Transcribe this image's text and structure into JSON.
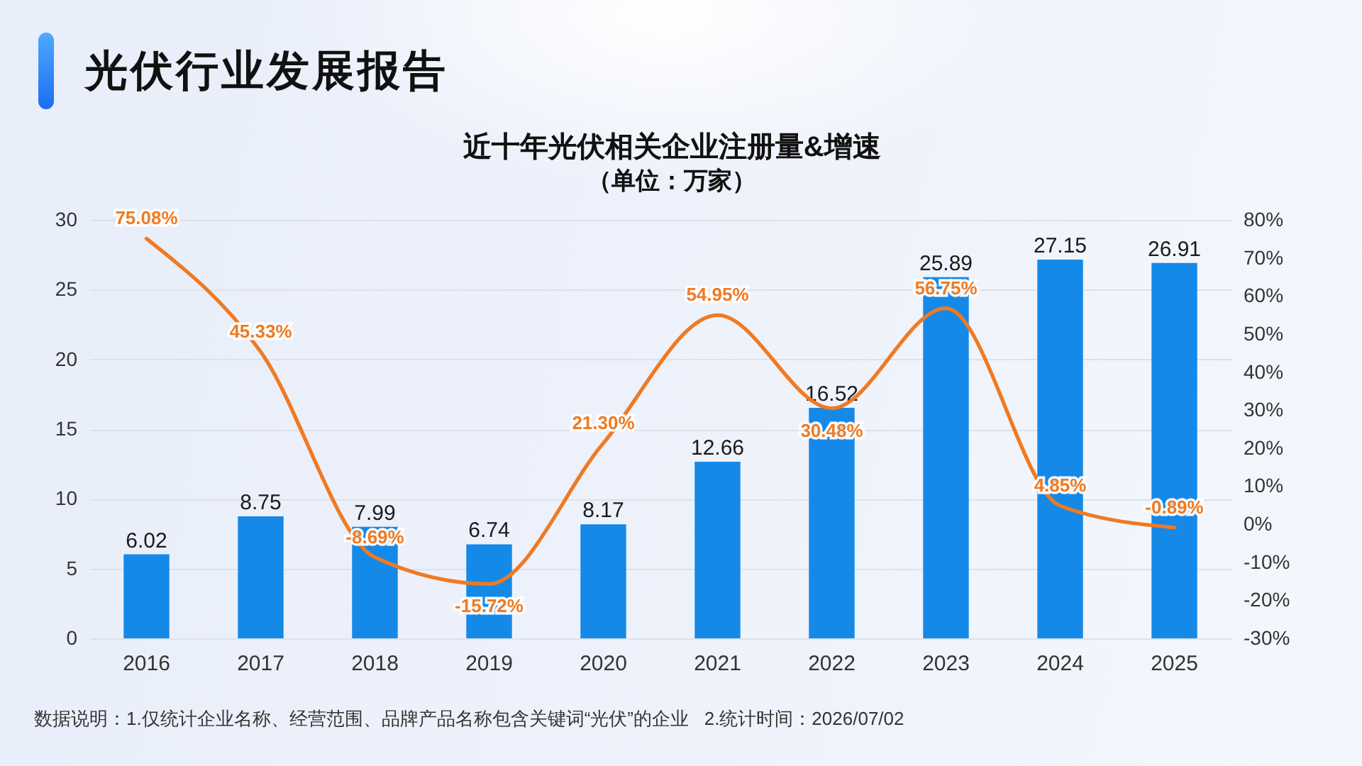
{
  "chart_data": {
    "type": "bar",
    "title": "近十年光伏相关企业注册量&增速",
    "subtitle": "（单位：万家）",
    "annotations": [
      "光伏行业发展报告",
      "数据说明：1.仅统计企业名称、经营范围、品牌产品名称包含关键词“光伏”的企业   2.统计时间：2026/07/02"
    ],
    "categories": [
      "2016",
      "2017",
      "2018",
      "2019",
      "2020",
      "2021",
      "2022",
      "2023",
      "2024",
      "2025"
    ],
    "series": [
      {
        "color": "#1589e8",
        "values": [
          6.02,
          8.75,
          7.99,
          6.74,
          8.17,
          12.66,
          16.52,
          25.89,
          27.15,
          26.91
        ],
        "value_labels": [
          "6.02",
          "8.75",
          "7.99",
          "6.74",
          "8.17",
          "12.66",
          "16.52",
          "25.89",
          "27.15",
          "26.91"
        ]
      },
      {
        "type": "line",
        "axis": "y2",
        "color": "#f07a22",
        "values": [
          75.08,
          45.33,
          -8.69,
          -15.72,
          21.3,
          54.95,
          30.48,
          56.75,
          4.85,
          -0.89
        ],
        "value_labels": [
          "75.08%",
          "45.33%",
          "-8.69%",
          "-15.72%",
          "21.30%",
          "54.95%",
          "30.48%",
          "56.75%",
          "4.85%",
          "-0.89%"
        ]
      }
    ],
    "ylim": [
      0,
      30
    ],
    "yticks": [
      0,
      5,
      10,
      15,
      20,
      25,
      30
    ],
    "y2lim": [
      -30,
      80
    ],
    "y2ticks": [
      {
        "value": -30,
        "label": "-30%"
      },
      {
        "value": -20,
        "label": "-20%"
      },
      {
        "value": -10,
        "label": "-10%"
      },
      {
        "value": 0,
        "label": "0%"
      },
      {
        "value": 10,
        "label": "10%"
      },
      {
        "value": 20,
        "label": "20%"
      },
      {
        "value": 30,
        "label": "30%"
      },
      {
        "value": 40,
        "label": "40%"
      },
      {
        "value": 50,
        "label": "50%"
      },
      {
        "value": 60,
        "label": "60%"
      },
      {
        "value": 70,
        "label": "70%"
      },
      {
        "value": 80,
        "label": "80%"
      }
    ],
    "grid": "y"
  }
}
